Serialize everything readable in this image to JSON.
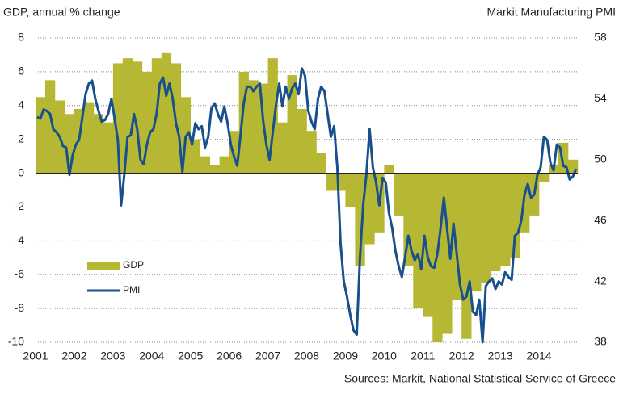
{
  "chart_data": {
    "type": "bar-line",
    "title": "GDP, annual % change",
    "y2_title": "Markit Manufacturing PMI",
    "source": "Sources: Markit, National Statistical Service of Greece",
    "xlim": [
      2001,
      2015
    ],
    "xticks": [
      2001,
      2002,
      2003,
      2004,
      2005,
      2006,
      2007,
      2008,
      2009,
      2010,
      2011,
      2012,
      2013,
      2014
    ],
    "ylim": [
      -10,
      8
    ],
    "yticks": [
      -10,
      -8,
      -6,
      -4,
      -2,
      0,
      2,
      4,
      6,
      8
    ],
    "y2lim": [
      38,
      58
    ],
    "y2ticks": [
      38,
      42,
      46,
      50,
      54,
      58
    ],
    "grid": true,
    "legend": "lower left",
    "series": [
      {
        "name": "GDP",
        "type": "bar",
        "color": "#b6b834",
        "values": [
          4.5,
          5.5,
          4.3,
          3.5,
          3.8,
          4.2,
          3.5,
          3.0,
          6.5,
          6.8,
          6.6,
          6.0,
          6.8,
          7.1,
          6.5,
          4.5,
          2.0,
          1.0,
          0.5,
          1.0,
          2.5,
          6.0,
          5.5,
          5.3,
          6.8,
          3.0,
          5.8,
          3.8,
          2.5,
          1.2,
          -1.0,
          -1.0,
          -2.0,
          -5.5,
          -4.2,
          -3.5,
          0.5,
          -2.5,
          -5.5,
          -8.0,
          -8.5,
          -10,
          -9.5,
          -7.5,
          -9.8,
          -7.0,
          -6.5,
          -5.8,
          -5.5,
          -5.0,
          -3.5,
          -2.5,
          -0.5,
          0.5,
          1.8,
          0.8
        ]
      },
      {
        "name": "PMI",
        "type": "line",
        "axis": "y2",
        "color": "#184f8d",
        "values": [
          52.8,
          52.7,
          53.3,
          53.2,
          53.0,
          52.0,
          51.8,
          51.5,
          50.9,
          50.8,
          49.0,
          50.3,
          51.0,
          51.3,
          52.8,
          54.3,
          55.0,
          55.2,
          54.0,
          53.2,
          52.5,
          52.6,
          53.0,
          54.0,
          52.7,
          51.3,
          47.0,
          49.0,
          51.5,
          51.6,
          53.0,
          52.0,
          50.0,
          49.7,
          51.0,
          51.8,
          52.0,
          53.0,
          55.0,
          55.4,
          54.2,
          55.0,
          54.0,
          52.4,
          51.5,
          49.2,
          51.5,
          51.8,
          51.0,
          52.4,
          52.0,
          52.2,
          50.8,
          51.5,
          53.4,
          53.7,
          53.0,
          52.5,
          53.5,
          52.4,
          51.0,
          50.2,
          49.6,
          51.6,
          53.7,
          54.8,
          54.8,
          54.5,
          54.8,
          55.0,
          52.6,
          51.0,
          50.0,
          51.8,
          53.6,
          55.0,
          53.5,
          54.8,
          54.0,
          54.7,
          55.0,
          54.3,
          56.0,
          55.5,
          53.2,
          52.5,
          52.0,
          54.0,
          54.8,
          54.5,
          53.0,
          51.5,
          52.2,
          49.5,
          44.5,
          42.0,
          41.0,
          39.8,
          38.8,
          38.5,
          43.5,
          47.0,
          49.0,
          52.0,
          49.5,
          48.5,
          47.0,
          48.8,
          48.5,
          46.5,
          45.5,
          44.0,
          43.0,
          42.3,
          43.6,
          45.0,
          44.0,
          43.4,
          43.8,
          42.8,
          45.0,
          43.6,
          43.0,
          42.9,
          43.8,
          45.5,
          47.5,
          45.5,
          43.5,
          45.8,
          43.8,
          41.8,
          40.8,
          41.0,
          42.0,
          40.0,
          39.8,
          40.8,
          38.0,
          41.7,
          42.0,
          42.2,
          41.5,
          42.0,
          41.8,
          42.6,
          42.3,
          42.1,
          45.0,
          45.2,
          46.0,
          47.7,
          48.4,
          47.5,
          47.7,
          49.0,
          49.5,
          51.5,
          51.3,
          49.8,
          49.3,
          51.0,
          50.8,
          49.6,
          49.5,
          48.7,
          48.9,
          49.4
        ]
      }
    ]
  }
}
